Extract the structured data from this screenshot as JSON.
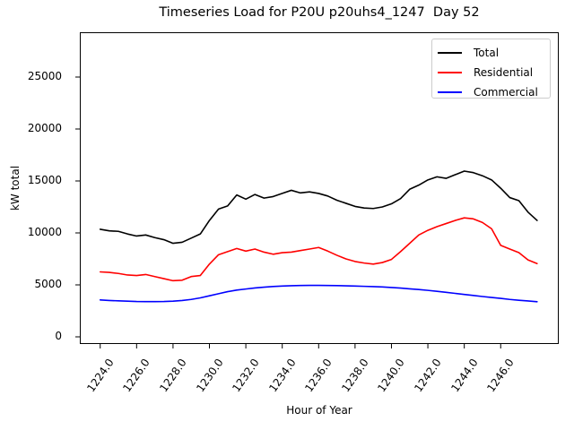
{
  "title": "Timeseries Load for P20U p20uhs4_1247  Day 52",
  "chart_data": {
    "type": "line",
    "title": "Timeseries Load for P20U p20uhs4_1247  Day 52",
    "xlabel": "Hour of Year",
    "ylabel": "kW total",
    "xlim": [
      1222.88,
      1249.19
    ],
    "ylim": [
      -690,
      29310
    ],
    "grid": false,
    "legend_position": "upper right",
    "x_tick_values": [
      1224,
      1226,
      1228,
      1230,
      1232,
      1234,
      1236,
      1238,
      1240,
      1242,
      1244,
      1246
    ],
    "x_tick_labels": [
      "1224.0",
      "1226.0",
      "1228.0",
      "1230.0",
      "1232.0",
      "1234.0",
      "1236.0",
      "1238.0",
      "1240.0",
      "1242.0",
      "1244.0",
      "1246.0"
    ],
    "y_tick_values": [
      0,
      5000,
      10000,
      15000,
      20000,
      25000
    ],
    "y_tick_labels": [
      "0",
      "5000",
      "10000",
      "15000",
      "20000",
      "25000"
    ],
    "x": [
      1224,
      1224.5,
      1225,
      1225.5,
      1226,
      1226.5,
      1227,
      1227.5,
      1228,
      1228.5,
      1229,
      1229.5,
      1230,
      1230.5,
      1231,
      1231.5,
      1232,
      1232.5,
      1233,
      1233.5,
      1234,
      1234.5,
      1235,
      1235.5,
      1236,
      1236.5,
      1237,
      1237.5,
      1238,
      1238.5,
      1239,
      1239.5,
      1240,
      1240.5,
      1241,
      1241.5,
      1242,
      1242.5,
      1243,
      1243.5,
      1244,
      1244.5,
      1245,
      1245.5,
      1246,
      1246.5,
      1247,
      1247.5,
      1248
    ],
    "series": [
      {
        "name": "Total",
        "color": "#000000",
        "values": [
          10350,
          10200,
          10150,
          9900,
          9700,
          9800,
          9550,
          9350,
          9000,
          9100,
          9500,
          9900,
          11200,
          12300,
          12600,
          13650,
          13250,
          13700,
          13350,
          13500,
          13800,
          14100,
          13850,
          13950,
          13800,
          13550,
          13150,
          12850,
          12550,
          12400,
          12350,
          12500,
          12800,
          13300,
          14200,
          14600,
          15100,
          15400,
          15250,
          15600,
          15950,
          15800,
          15500,
          15100,
          14300,
          13400,
          13100,
          12000,
          11200
        ]
      },
      {
        "name": "Residential",
        "color": "#ff0000",
        "values": [
          6250,
          6200,
          6100,
          5950,
          5900,
          6000,
          5800,
          5600,
          5400,
          5450,
          5800,
          5900,
          7000,
          7900,
          8200,
          8500,
          8250,
          8450,
          8150,
          7950,
          8100,
          8150,
          8300,
          8450,
          8600,
          8250,
          7850,
          7500,
          7250,
          7100,
          7000,
          7150,
          7450,
          8200,
          9000,
          9800,
          10250,
          10600,
          10900,
          11200,
          11450,
          11350,
          11000,
          10400,
          8800,
          8450,
          8100,
          7400,
          7050
        ]
      },
      {
        "name": "Commercial",
        "color": "#0000ff",
        "values": [
          3550,
          3500,
          3460,
          3430,
          3400,
          3390,
          3390,
          3400,
          3430,
          3500,
          3600,
          3750,
          3950,
          4150,
          4350,
          4500,
          4600,
          4700,
          4780,
          4840,
          4890,
          4920,
          4940,
          4950,
          4950,
          4940,
          4930,
          4910,
          4890,
          4860,
          4830,
          4800,
          4750,
          4690,
          4620,
          4550,
          4470,
          4380,
          4280,
          4180,
          4080,
          3980,
          3880,
          3790,
          3700,
          3600,
          3520,
          3450,
          3380
        ]
      }
    ]
  }
}
